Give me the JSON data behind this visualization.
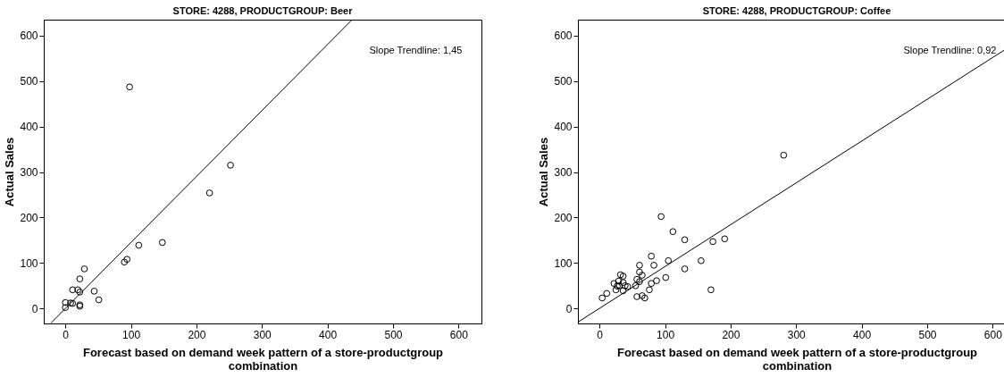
{
  "chart_data": [
    {
      "type": "scatter",
      "title": "STORE: 4288, PRODUCTGROUP: Beer",
      "xlabel": "Forecast based on demand week pattern of a store-productgroup combination",
      "ylabel": "Actual Sales",
      "xlim": [
        -33,
        635
      ],
      "ylim": [
        -33,
        635
      ],
      "xticks": [
        0,
        100,
        200,
        300,
        400,
        500,
        600
      ],
      "yticks": [
        0,
        100,
        200,
        300,
        400,
        500,
        600
      ],
      "annotations": [
        "Slope Trendline: 1,45"
      ],
      "series": [
        {
          "color": "#000000",
          "marker": "circle",
          "x": [
            98,
            252,
            220,
            148,
            112,
            94,
            90,
            29,
            22,
            11,
            19,
            22,
            44,
            51,
            0,
            0,
            8,
            11,
            22,
            22
          ],
          "values": [
            487,
            315,
            254,
            145,
            139,
            108,
            102,
            87,
            65,
            41,
            41,
            36,
            38,
            19,
            13,
            2,
            12,
            11,
            8,
            5
          ]
        },
        {
          "type": "line",
          "color": "#000000",
          "marker": "none",
          "x": [
            -22,
            437
          ],
          "values": [
            -32,
            634
          ]
        }
      ]
    },
    {
      "type": "scatter",
      "title": "STORE: 4288, PRODUCTGROUP: Coffee",
      "xlabel": "Forecast based on demand week pattern of a store-productgroup combination",
      "ylabel": "Actual Sales",
      "xlim": [
        -33,
        635
      ],
      "ylim": [
        -33,
        635
      ],
      "xticks": [
        0,
        100,
        200,
        300,
        400,
        500,
        600
      ],
      "yticks": [
        0,
        100,
        200,
        300,
        400,
        500,
        600
      ],
      "annotations": [
        "Slope Trendline: 0,92"
      ],
      "series": [
        {
          "color": "#000000",
          "marker": "circle",
          "x": [
            281,
            94,
            112,
            130,
            173,
            191,
            155,
            105,
            130,
            79,
            83,
            61,
            61,
            65,
            61,
            57,
            55,
            101,
            87,
            79,
            76,
            170,
            57,
            65,
            69,
            4,
            11,
            22,
            32,
            36,
            29,
            25,
            36,
            36,
            30,
            39,
            43,
            27
          ],
          "values": [
            337,
            202,
            169,
            151,
            147,
            153,
            105,
            105,
            87,
            115,
            95,
            95,
            80,
            73,
            59,
            64,
            50,
            68,
            61,
            55,
            41,
            41,
            26,
            28,
            23,
            23,
            33,
            55,
            74,
            71,
            60,
            41,
            57,
            39,
            50,
            50,
            48,
            49
          ]
        },
        {
          "type": "line",
          "color": "#000000",
          "marker": "none",
          "x": [
            -33,
            634
          ],
          "values": [
            -30,
            583
          ]
        }
      ]
    }
  ]
}
